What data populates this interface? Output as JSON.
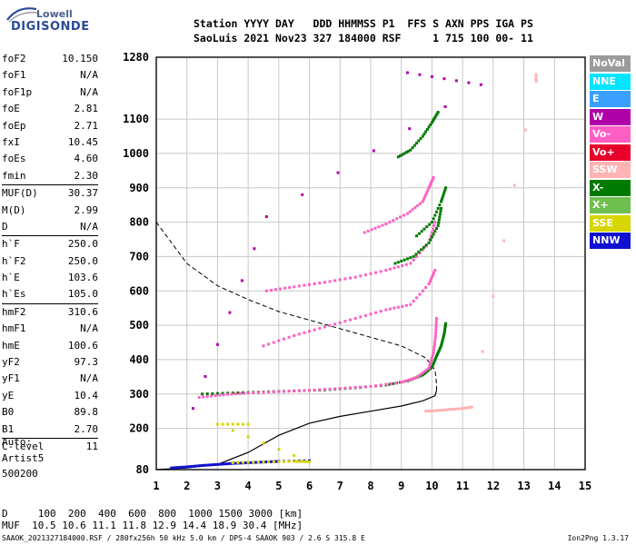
{
  "logo": {
    "line1": "Lowell",
    "line2": "DIGISONDE"
  },
  "header": {
    "row1": "Station YYYY DAY   DDD HHMMSS P1  FFS S AXN PPS IGA PS",
    "row2": "SaoLuis 2021 Nov23 327 184000 RSF     1 715 100 00- 11"
  },
  "params": [
    {
      "name": "foF2",
      "value": "10.150"
    },
    {
      "name": "foF1",
      "value": "N/A"
    },
    {
      "name": "foF1p",
      "value": "N/A"
    },
    {
      "name": "foE",
      "value": "2.81"
    },
    {
      "name": "foEp",
      "value": "2.71"
    },
    {
      "name": "fxI",
      "value": "10.45"
    },
    {
      "name": "foEs",
      "value": "4.60"
    },
    {
      "name": "fmin",
      "value": "2.30"
    },
    {
      "name": "MUF(D)",
      "value": "30.37",
      "sep": true
    },
    {
      "name": "M(D)",
      "value": "2.99"
    },
    {
      "name": "D",
      "value": "N/A"
    },
    {
      "name": "h`F",
      "value": "250.0",
      "sep": true
    },
    {
      "name": "h`F2",
      "value": "250.0"
    },
    {
      "name": "h`E",
      "value": "103.6"
    },
    {
      "name": "h`Es",
      "value": "105.0"
    },
    {
      "name": "hmF2",
      "value": "310.6",
      "sep": true
    },
    {
      "name": "hmF1",
      "value": "N/A"
    },
    {
      "name": "hmE",
      "value": "100.6"
    },
    {
      "name": "yF2",
      "value": "97.3"
    },
    {
      "name": "yF1",
      "value": "N/A"
    },
    {
      "name": "yE",
      "value": "10.4"
    },
    {
      "name": "B0",
      "value": "89.8"
    },
    {
      "name": "B1",
      "value": "2.70"
    },
    {
      "name": "C-level",
      "value": "11",
      "sep": true
    }
  ],
  "auto": {
    "label": "Auto:",
    "software": "Artist5",
    "code": "500200"
  },
  "legend": [
    {
      "label": "NoVal",
      "color": "#9b9b9b"
    },
    {
      "label": "NNE",
      "color": "#00e5ff"
    },
    {
      "label": "E",
      "color": "#3aa0ff"
    },
    {
      "label": "W",
      "color": "#b000a8"
    },
    {
      "label": "Vo-",
      "color": "#ff5fc3"
    },
    {
      "label": "Vo+",
      "color": "#e8002a"
    },
    {
      "label": "SSW",
      "color": "#ffb3b3"
    },
    {
      "label": "X-",
      "color": "#007a00"
    },
    {
      "label": "X+",
      "color": "#6fbf4f"
    },
    {
      "label": "SSE",
      "color": "#d6d600"
    },
    {
      "label": "NNW",
      "color": "#1010d0"
    }
  ],
  "muf_table": {
    "d_row": "D     100  200  400  600  800  1000 1500 3000 [km]",
    "muf_row": "MUF  10.5 10.6 11.1 11.8 12.9 14.4 18.9 30.4 [MHz]"
  },
  "footer": {
    "left": "SAAOK_2021327184000.RSF / 280fx256h 50 kHz 5.0 km / DPS-4 SAAOK 903 / 2.6 S 315.8 E",
    "right": "Ion2Png 1.3.17"
  },
  "chart_data": {
    "type": "scatter",
    "x_range": [
      1,
      15
    ],
    "y_range": [
      80,
      1280
    ],
    "x_ticks": [
      1,
      2,
      3,
      4,
      5,
      6,
      7,
      8,
      9,
      10,
      11,
      12,
      13,
      14,
      15
    ],
    "y_ticks": [
      80,
      200,
      300,
      400,
      500,
      600,
      700,
      800,
      900,
      1000,
      1100,
      1280
    ],
    "grid": true,
    "series": [
      {
        "name": "X-",
        "color": "#007a00",
        "points": [
          [
            2.5,
            300
          ],
          [
            3.5,
            303
          ],
          [
            4.5,
            306
          ],
          [
            5.5,
            309
          ],
          [
            6.5,
            312
          ],
          [
            7.5,
            318
          ],
          [
            8.5,
            326
          ],
          [
            9.2,
            338
          ],
          [
            9.7,
            355
          ],
          [
            10.0,
            378
          ],
          [
            10.15,
            410
          ],
          [
            10.3,
            440
          ],
          [
            10.4,
            475
          ],
          [
            10.45,
            505
          ]
        ]
      },
      {
        "name": "Vo-",
        "color": "#ff5fc3",
        "points": [
          [
            2.4,
            290
          ],
          [
            3.2,
            298
          ],
          [
            4,
            303
          ],
          [
            5,
            307
          ],
          [
            6,
            311
          ],
          [
            7,
            316
          ],
          [
            8,
            322
          ],
          [
            9,
            334
          ],
          [
            9.5,
            348
          ],
          [
            9.9,
            375
          ],
          [
            10.05,
            420
          ],
          [
            10.12,
            470
          ],
          [
            10.15,
            520
          ]
        ]
      },
      {
        "name": "Vo-",
        "color": "#ff5fc3",
        "points": [
          [
            4.5,
            440
          ],
          [
            5.5,
            470
          ],
          [
            6.5,
            495
          ],
          [
            7.5,
            520
          ],
          [
            8.5,
            545
          ],
          [
            9.3,
            560
          ],
          [
            9.9,
            620
          ],
          [
            10.1,
            660
          ]
        ]
      },
      {
        "name": "Vo-",
        "color": "#ff5fc3",
        "points": [
          [
            4.6,
            600
          ],
          [
            5.5,
            612
          ],
          [
            6.5,
            625
          ],
          [
            7.5,
            640
          ],
          [
            8.5,
            660
          ],
          [
            9.3,
            680
          ],
          [
            9.9,
            740
          ],
          [
            10.1,
            800
          ]
        ]
      },
      {
        "name": "Vo-",
        "color": "#ff5fc3",
        "points": [
          [
            7.8,
            770
          ],
          [
            8.5,
            795
          ],
          [
            9.2,
            825
          ],
          [
            9.7,
            860
          ],
          [
            9.9,
            900
          ],
          [
            10.05,
            930
          ]
        ]
      },
      {
        "name": "X-",
        "color": "#007a00",
        "points": [
          [
            8.9,
            990
          ],
          [
            9.3,
            1010
          ],
          [
            9.7,
            1050
          ],
          [
            10.0,
            1090
          ],
          [
            10.2,
            1120
          ]
        ]
      },
      {
        "name": "X-",
        "color": "#007a00",
        "points": [
          [
            8.8,
            680
          ],
          [
            9.4,
            700
          ],
          [
            9.9,
            740
          ],
          [
            10.2,
            790
          ],
          [
            10.3,
            840
          ]
        ]
      },
      {
        "name": "X-",
        "color": "#007a00",
        "points": [
          [
            9.5,
            760
          ],
          [
            10.0,
            800
          ],
          [
            10.3,
            860
          ],
          [
            10.45,
            900
          ]
        ]
      },
      {
        "name": "NNW",
        "color": "#1010d0",
        "points": [
          [
            1.5,
            85
          ],
          [
            2,
            88
          ],
          [
            2.5,
            92
          ],
          [
            3,
            95
          ],
          [
            3.5,
            98
          ],
          [
            4,
            100
          ],
          [
            4.5,
            102
          ],
          [
            5,
            104
          ],
          [
            6,
            106
          ]
        ]
      },
      {
        "name": "SSE",
        "color": "#d6d600",
        "points": [
          [
            3.5,
            100
          ],
          [
            4.5,
            102
          ],
          [
            5.5,
            104
          ],
          [
            6,
            103
          ],
          [
            3,
            212
          ],
          [
            4,
            212
          ]
        ]
      },
      {
        "name": "SSW",
        "color": "#ffb3b3",
        "points": [
          [
            9.8,
            250
          ],
          [
            10.2,
            252
          ],
          [
            10.6,
            255
          ],
          [
            11,
            258
          ],
          [
            11.3,
            262
          ],
          [
            13.4,
            1230
          ],
          [
            13.4,
            1210
          ]
        ]
      },
      {
        "name": "W",
        "color": "#b000a8",
        "points": [
          [
            2.2,
            258
          ],
          [
            4.6,
            816
          ],
          [
            11.6,
            1200
          ],
          [
            9.2,
            1235
          ]
        ]
      }
    ],
    "profile_line": {
      "color": "#000000",
      "points": [
        [
          1,
          80
        ],
        [
          2,
          85
        ],
        [
          3,
          95
        ],
        [
          4,
          130
        ],
        [
          5,
          180
        ],
        [
          6,
          215
        ],
        [
          7,
          235
        ],
        [
          8,
          250
        ],
        [
          9,
          265
        ],
        [
          9.7,
          280
        ],
        [
          10.1,
          295
        ],
        [
          10.15,
          310
        ]
      ]
    },
    "profile_dashed": {
      "color": "#000000",
      "points": [
        [
          1,
          800
        ],
        [
          2,
          680
        ],
        [
          3,
          615
        ],
        [
          4,
          575
        ],
        [
          5,
          540
        ],
        [
          6,
          515
        ],
        [
          7,
          490
        ],
        [
          8,
          465
        ],
        [
          9,
          440
        ],
        [
          9.8,
          405
        ],
        [
          10.1,
          370
        ],
        [
          10.15,
          330
        ],
        [
          10.15,
          310
        ]
      ]
    }
  }
}
